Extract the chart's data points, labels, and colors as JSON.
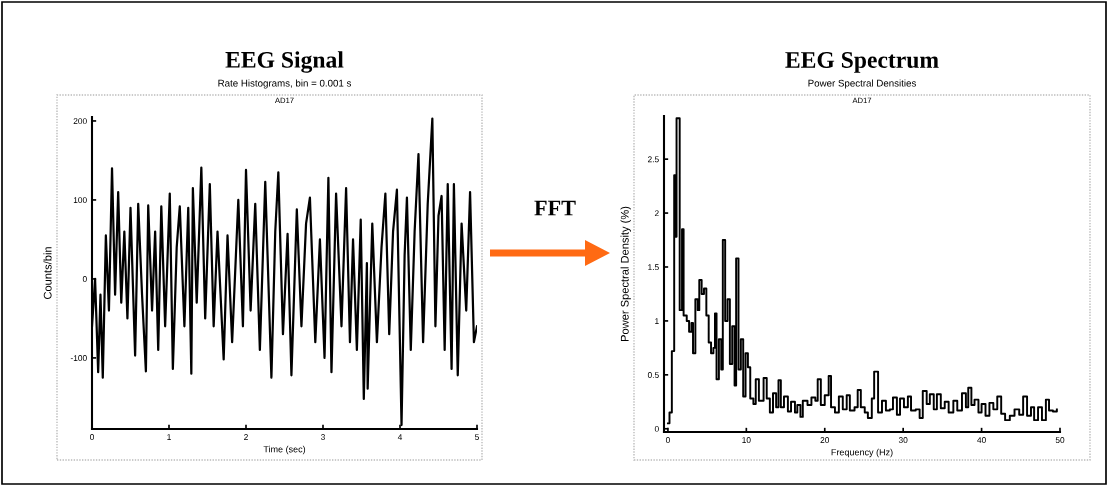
{
  "chart_data": [
    {
      "type": "line",
      "title": "EEG Signal",
      "subtitle": "Rate Histograms, bin = 0.001 s",
      "xlabel": "Time (sec)",
      "ylabel": "Counts/bin",
      "annotations": [
        "AD17",
        "FFT"
      ],
      "xlim": [
        0,
        5
      ],
      "ylim": [
        -190,
        205
      ],
      "xticks": [
        0,
        1,
        2,
        3,
        4,
        5
      ],
      "yticks": [
        -100,
        0,
        100,
        200
      ],
      "grid": false,
      "legend": false,
      "series": [
        {
          "color": "#000000",
          "x": [
            0,
            0.04,
            0.08,
            0.11,
            0.14,
            0.18,
            0.22,
            0.26,
            0.3,
            0.34,
            0.38,
            0.42,
            0.46,
            0.5,
            0.56,
            0.6,
            0.65,
            0.7,
            0.73,
            0.78,
            0.82,
            0.86,
            0.9,
            0.95,
            1.01,
            1.05,
            1.1,
            1.14,
            1.2,
            1.25,
            1.29,
            1.31,
            1.36,
            1.42,
            1.47,
            1.53,
            1.58,
            1.63,
            1.71,
            1.76,
            1.82,
            1.9,
            1.96,
            2.0,
            2.06,
            2.12,
            2.18,
            2.25,
            2.33,
            2.38,
            2.42,
            2.48,
            2.54,
            2.59,
            2.66,
            2.72,
            2.78,
            2.83,
            2.9,
            2.96,
            3.02,
            3.07,
            3.11,
            3.17,
            3.24,
            3.3,
            3.35,
            3.39,
            3.44,
            3.49,
            3.53,
            3.57,
            3.58,
            3.64,
            3.7,
            3.76,
            3.81,
            3.86,
            3.91,
            3.96,
            4.02,
            4.06,
            4.09,
            4.14,
            4.19,
            4.24,
            4.3,
            4.36,
            4.42,
            4.46,
            4.5,
            4.54,
            4.58,
            4.62,
            4.67,
            4.7,
            4.75,
            4.8,
            4.86,
            4.91,
            4.96,
            5.0
          ],
          "values": [
            -60,
            0,
            -118,
            -20,
            -125,
            55,
            -40,
            140,
            -20,
            110,
            -30,
            60,
            -50,
            90,
            -97,
            95,
            -20,
            -117,
            93,
            -40,
            60,
            -90,
            92,
            -60,
            108,
            -114,
            40,
            92,
            -60,
            90,
            -120,
            115,
            -30,
            141,
            -50,
            120,
            -60,
            60,
            -102,
            55,
            -80,
            100,
            -60,
            138,
            -40,
            95,
            -90,
            123,
            -125,
            60,
            135,
            -70,
            57,
            -122,
            88,
            -60,
            70,
            103,
            -80,
            50,
            -100,
            128,
            -118,
            108,
            -60,
            115,
            -80,
            50,
            -90,
            75,
            -152,
            20,
            -139,
            70,
            -80,
            40,
            108,
            -70,
            60,
            113,
            -185,
            30,
            103,
            -90,
            60,
            158,
            -80,
            95,
            203,
            -60,
            80,
            105,
            -90,
            120,
            -114,
            120,
            -122,
            70,
            -40,
            110,
            -80,
            -60
          ]
        }
      ]
    },
    {
      "type": "step",
      "title": "EEG Spectrum",
      "subtitle": "Power Spectral Densities",
      "xlabel": "Frequency (Hz)",
      "ylabel": "Power Spectral Density (%)",
      "annotations": [
        "AD17"
      ],
      "xlim": [
        -0.5,
        50
      ],
      "ylim": [
        -0.03,
        2.9
      ],
      "xticks": [
        0,
        10,
        20,
        30,
        40,
        50
      ],
      "yticks": [
        0,
        0.5,
        1,
        1.5,
        2,
        2.5
      ],
      "grid": false,
      "legend": false,
      "series": [
        {
          "color": "#000000",
          "x": [
            0,
            0.2,
            0.5,
            0.8,
            1.0,
            1.1,
            1.5,
            1.8,
            2.0,
            2.4,
            2.7,
            3.0,
            3.2,
            3.5,
            3.8,
            4.0,
            4.3,
            4.6,
            4.9,
            5.2,
            5.5,
            5.8,
            6.0,
            6.2,
            6.5,
            6.8,
            7.0,
            7.3,
            7.6,
            7.9,
            8.2,
            8.5,
            8.7,
            9.0,
            9.3,
            9.6,
            9.9,
            10.2,
            10.5,
            10.9,
            11.2,
            11.6,
            12.2,
            12.6,
            13.0,
            13.4,
            13.8,
            14.1,
            14.4,
            14.8,
            15.3,
            15.7,
            16.2,
            16.5,
            16.9,
            17.2,
            17.8,
            18.3,
            18.8,
            19.1,
            19.5,
            20.0,
            20.5,
            20.8,
            21.3,
            21.8,
            22.3,
            22.8,
            23.2,
            23.8,
            24.2,
            24.6,
            25.1,
            25.5,
            26.0,
            26.3,
            26.8,
            27.3,
            27.8,
            28.3,
            28.7,
            29.2,
            29.6,
            30.1,
            30.6,
            31.0,
            31.6,
            32.1,
            32.5,
            33.0,
            33.4,
            33.9,
            34.3,
            34.8,
            35.3,
            35.8,
            36.4,
            36.9,
            37.5,
            38.0,
            38.3,
            38.7,
            39.1,
            39.6,
            40.0,
            40.5,
            41.0,
            41.5,
            42.0,
            42.5,
            43.0,
            43.6,
            44.2,
            44.8,
            45.3,
            45.8,
            46.3,
            46.7,
            47.2,
            47.7,
            48.2,
            48.6,
            49.1,
            49.6
          ],
          "values": [
            0.05,
            0.15,
            0.72,
            2.35,
            1.78,
            2.88,
            1.1,
            1.85,
            1.05,
            1.0,
            0.9,
            0.98,
            0.7,
            1.2,
            1.1,
            1.38,
            1.25,
            1.3,
            1.05,
            0.8,
            0.7,
            0.75,
            1.07,
            0.46,
            0.83,
            0.55,
            1.75,
            1.0,
            1.2,
            0.6,
            0.95,
            0.4,
            1.58,
            0.55,
            0.83,
            0.3,
            0.7,
            0.57,
            0.28,
            0.23,
            0.46,
            0.26,
            0.47,
            0.28,
            0.15,
            0.33,
            0.2,
            0.45,
            0.2,
            0.3,
            0.16,
            0.25,
            0.15,
            0.22,
            0.11,
            0.26,
            0.22,
            0.29,
            0.26,
            0.46,
            0.22,
            0.31,
            0.49,
            0.2,
            0.15,
            0.3,
            0.18,
            0.31,
            0.17,
            0.2,
            0.36,
            0.2,
            0.15,
            0.1,
            0.28,
            0.53,
            0.15,
            0.26,
            0.17,
            0.18,
            0.29,
            0.13,
            0.28,
            0.2,
            0.3,
            0.17,
            0.18,
            0.1,
            0.35,
            0.23,
            0.32,
            0.18,
            0.32,
            0.19,
            0.25,
            0.15,
            0.26,
            0.17,
            0.33,
            0.2,
            0.38,
            0.22,
            0.27,
            0.15,
            0.23,
            0.12,
            0.24,
            0.18,
            0.3,
            0.14,
            0.08,
            0.12,
            0.18,
            0.13,
            0.3,
            0.12,
            0.2,
            0.08,
            0.2,
            0.08,
            0.27,
            0.17,
            0.16,
            0.18
          ]
        }
      ]
    }
  ]
}
